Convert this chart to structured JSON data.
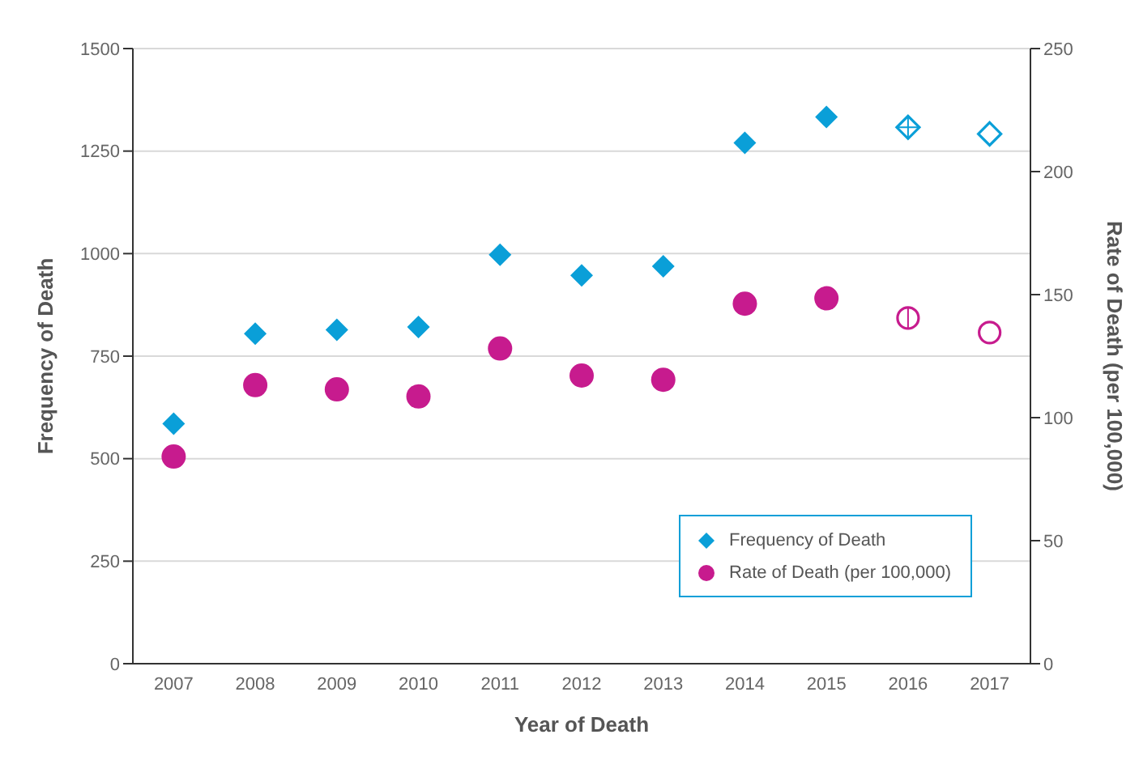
{
  "chart_data": {
    "type": "scatter",
    "xlabel": "Year of Death",
    "ylabel": "Frequency of Death",
    "y2label": "Rate of Death (per 100,000)",
    "categories": [
      "2007",
      "2008",
      "2009",
      "2010",
      "2011",
      "2012",
      "2013",
      "2014",
      "2015",
      "2016",
      "2017"
    ],
    "series": [
      {
        "name": "Frequency of Death",
        "color": "#0a9fd8",
        "marker": "diamond",
        "values": [
          585,
          805,
          814,
          821,
          997,
          947,
          969,
          1270,
          1333,
          null,
          null
        ]
      },
      {
        "name": "Rate of Death (per 100,000)",
        "color": "#c71b8e",
        "marker": "circle",
        "axis": "y2",
        "values": [
          84.2,
          113.2,
          111.5,
          108.6,
          128.1,
          117.1,
          115.4,
          146.3,
          148.5,
          null,
          null
        ]
      },
      {
        "color": "#0a9fd8",
        "marker": "diamond",
        "values": [
          null,
          null,
          null,
          null,
          null,
          null,
          null,
          null,
          null,
          1308,
          1292
        ]
      },
      {
        "color": "#c71b8e",
        "marker": "circle",
        "axis": "y2",
        "values": [
          null,
          null,
          null,
          null,
          null,
          null,
          null,
          null,
          null,
          140.5,
          134.6
        ]
      }
    ],
    "ylim": [
      0,
      1500
    ],
    "yticks": [
      0,
      250,
      500,
      750,
      1000,
      1250,
      1500
    ],
    "y2lim": [
      0,
      250
    ],
    "y2ticks": [
      0,
      50,
      100,
      150,
      200,
      250
    ],
    "grid": "y",
    "legend": "bottom right"
  }
}
